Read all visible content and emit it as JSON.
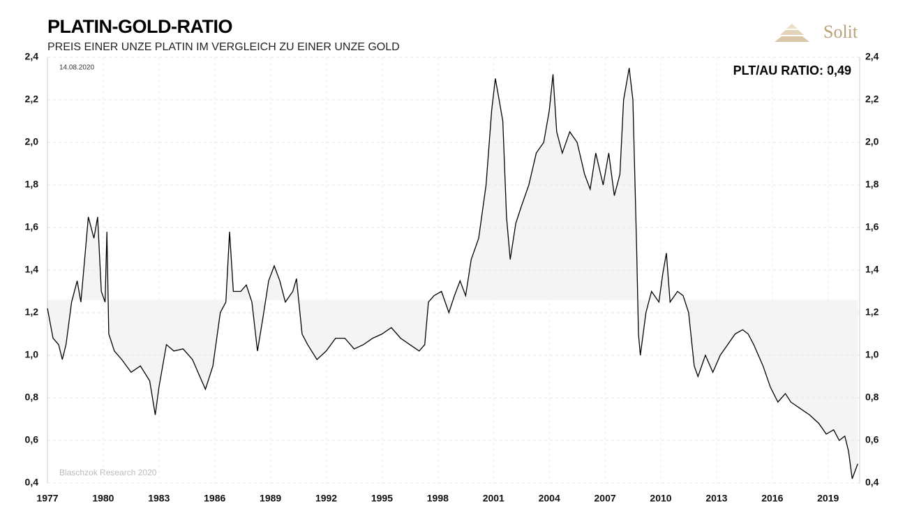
{
  "chart_data": {
    "type": "line",
    "title": "PLATIN-GOLD-RATIO",
    "subtitle": "PREIS EINER UNZE PLATIN IM VERGLEICH ZU EINER UNZE GOLD",
    "annotations": {
      "date": "14.08.2020",
      "current": "PLT/AU RATIO: 0,49",
      "source": "Blaschzok Research 2020",
      "logo": "Solit"
    },
    "xlim": [
      1977,
      2020.7
    ],
    "xticks": [
      1977,
      1980,
      1983,
      1986,
      1989,
      1992,
      1995,
      1998,
      2001,
      2004,
      2007,
      2010,
      2013,
      2016,
      2019
    ],
    "ylim": [
      0.4,
      2.4
    ],
    "yticks": [
      {
        "value": 0.4,
        "label": "0,4"
      },
      {
        "value": 0.6,
        "label": "0,6"
      },
      {
        "value": 0.8,
        "label": "0,8"
      },
      {
        "value": 1.0,
        "label": "1,0"
      },
      {
        "value": 1.2,
        "label": "1,2"
      },
      {
        "value": 1.4,
        "label": "1,4"
      },
      {
        "value": 1.6,
        "label": "1,6"
      },
      {
        "value": 1.8,
        "label": "1,8"
      },
      {
        "value": 2.0,
        "label": "2,0"
      },
      {
        "value": 2.2,
        "label": "2,2"
      },
      {
        "value": 2.4,
        "label": "2,4"
      }
    ],
    "grid": true,
    "shade_baseline": 1.26,
    "shade_color": "#f4f4f4",
    "x": [
      1977.0,
      1977.3,
      1977.6,
      1977.8,
      1978.0,
      1978.3,
      1978.6,
      1978.8,
      1979.0,
      1979.2,
      1979.5,
      1979.7,
      1979.9,
      1980.1,
      1980.2,
      1980.3,
      1980.6,
      1981.0,
      1981.5,
      1982.0,
      1982.5,
      1982.8,
      1983.0,
      1983.4,
      1983.8,
      1984.3,
      1984.8,
      1985.2,
      1985.5,
      1985.9,
      1986.3,
      1986.6,
      1986.8,
      1987.0,
      1987.4,
      1987.7,
      1988.0,
      1988.3,
      1988.6,
      1988.9,
      1989.2,
      1989.5,
      1989.8,
      1990.2,
      1990.4,
      1990.7,
      1991.0,
      1991.5,
      1992.0,
      1992.5,
      1993.0,
      1993.5,
      1994.0,
      1994.5,
      1995.0,
      1995.5,
      1996.0,
      1996.5,
      1997.0,
      1997.3,
      1997.5,
      1997.8,
      1998.2,
      1998.6,
      1998.9,
      1999.2,
      1999.5,
      1999.8,
      2000.2,
      2000.6,
      2000.9,
      2001.1,
      2001.3,
      2001.5,
      2001.7,
      2001.9,
      2002.2,
      2002.5,
      2002.9,
      2003.3,
      2003.7,
      2004.0,
      2004.2,
      2004.4,
      2004.7,
      2005.1,
      2005.5,
      2005.9,
      2006.2,
      2006.5,
      2006.9,
      2007.2,
      2007.5,
      2007.8,
      2008.0,
      2008.3,
      2008.5,
      2008.7,
      2008.8,
      2008.9,
      2009.2,
      2009.5,
      2009.9,
      2010.1,
      2010.3,
      2010.5,
      2010.9,
      2011.2,
      2011.5,
      2011.8,
      2012.0,
      2012.4,
      2012.8,
      2013.2,
      2013.6,
      2014.0,
      2014.4,
      2014.7,
      2015.0,
      2015.5,
      2015.9,
      2016.3,
      2016.7,
      2017.0,
      2017.5,
      2018.0,
      2018.5,
      2018.9,
      2019.3,
      2019.6,
      2019.9,
      2020.1,
      2020.3,
      2020.6
    ],
    "series": [
      {
        "name": "PLT/AU",
        "color": "#000000",
        "values": [
          1.22,
          1.08,
          1.05,
          0.98,
          1.05,
          1.25,
          1.35,
          1.25,
          1.45,
          1.65,
          1.55,
          1.65,
          1.3,
          1.25,
          1.58,
          1.1,
          1.02,
          0.98,
          0.92,
          0.95,
          0.88,
          0.72,
          0.85,
          1.05,
          1.02,
          1.03,
          0.98,
          0.9,
          0.84,
          0.95,
          1.2,
          1.25,
          1.58,
          1.3,
          1.3,
          1.33,
          1.25,
          1.02,
          1.18,
          1.35,
          1.42,
          1.35,
          1.25,
          1.3,
          1.36,
          1.1,
          1.05,
          0.98,
          1.02,
          1.08,
          1.08,
          1.03,
          1.05,
          1.08,
          1.1,
          1.13,
          1.08,
          1.05,
          1.02,
          1.05,
          1.25,
          1.28,
          1.3,
          1.2,
          1.28,
          1.35,
          1.28,
          1.45,
          1.55,
          1.8,
          2.15,
          2.3,
          2.2,
          2.1,
          1.65,
          1.45,
          1.62,
          1.7,
          1.8,
          1.95,
          2.0,
          2.15,
          2.32,
          2.05,
          1.95,
          2.05,
          2.0,
          1.85,
          1.78,
          1.95,
          1.8,
          1.95,
          1.75,
          1.85,
          2.2,
          2.35,
          2.2,
          1.5,
          1.1,
          1.0,
          1.2,
          1.3,
          1.25,
          1.38,
          1.48,
          1.25,
          1.3,
          1.28,
          1.2,
          0.95,
          0.9,
          1.0,
          0.92,
          1.0,
          1.05,
          1.1,
          1.12,
          1.1,
          1.05,
          0.95,
          0.85,
          0.78,
          0.82,
          0.78,
          0.75,
          0.72,
          0.68,
          0.63,
          0.65,
          0.6,
          0.62,
          0.55,
          0.42,
          0.49
        ]
      }
    ]
  }
}
